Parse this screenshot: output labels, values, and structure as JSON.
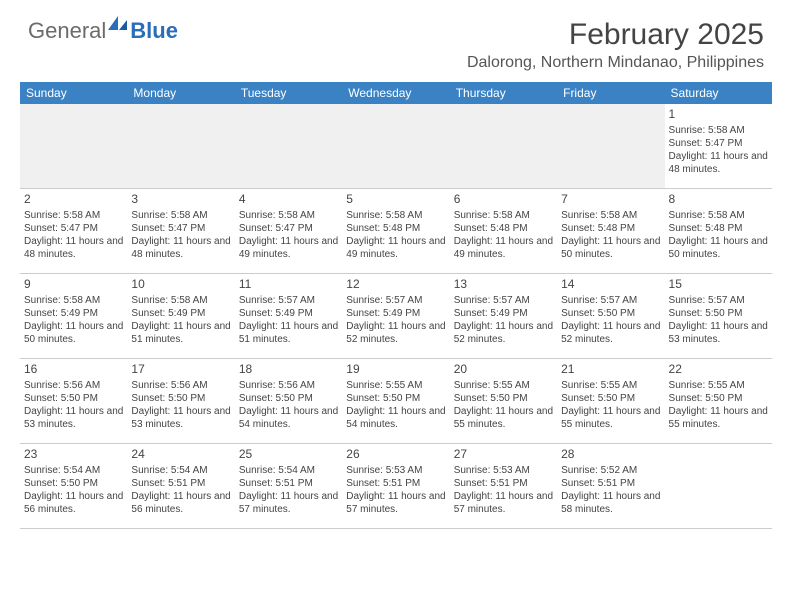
{
  "logo": {
    "part1": "General",
    "part2": "Blue"
  },
  "title": "February 2025",
  "location": "Dalorong, Northern Mindanao, Philippines",
  "colors": {
    "header_bg": "#3b82c4",
    "header_text": "#ffffff",
    "empty_bg": "#f0f0f0",
    "border": "#cccccc",
    "text": "#444444",
    "logo_blue": "#2a6db8"
  },
  "weekdays": [
    "Sunday",
    "Monday",
    "Tuesday",
    "Wednesday",
    "Thursday",
    "Friday",
    "Saturday"
  ],
  "weeks": [
    [
      null,
      null,
      null,
      null,
      null,
      null,
      {
        "n": "1",
        "sunrise": "5:58 AM",
        "sunset": "5:47 PM",
        "daylight": "11 hours and 48 minutes."
      }
    ],
    [
      {
        "n": "2",
        "sunrise": "5:58 AM",
        "sunset": "5:47 PM",
        "daylight": "11 hours and 48 minutes."
      },
      {
        "n": "3",
        "sunrise": "5:58 AM",
        "sunset": "5:47 PM",
        "daylight": "11 hours and 48 minutes."
      },
      {
        "n": "4",
        "sunrise": "5:58 AM",
        "sunset": "5:47 PM",
        "daylight": "11 hours and 49 minutes."
      },
      {
        "n": "5",
        "sunrise": "5:58 AM",
        "sunset": "5:48 PM",
        "daylight": "11 hours and 49 minutes."
      },
      {
        "n": "6",
        "sunrise": "5:58 AM",
        "sunset": "5:48 PM",
        "daylight": "11 hours and 49 minutes."
      },
      {
        "n": "7",
        "sunrise": "5:58 AM",
        "sunset": "5:48 PM",
        "daylight": "11 hours and 50 minutes."
      },
      {
        "n": "8",
        "sunrise": "5:58 AM",
        "sunset": "5:48 PM",
        "daylight": "11 hours and 50 minutes."
      }
    ],
    [
      {
        "n": "9",
        "sunrise": "5:58 AM",
        "sunset": "5:49 PM",
        "daylight": "11 hours and 50 minutes."
      },
      {
        "n": "10",
        "sunrise": "5:58 AM",
        "sunset": "5:49 PM",
        "daylight": "11 hours and 51 minutes."
      },
      {
        "n": "11",
        "sunrise": "5:57 AM",
        "sunset": "5:49 PM",
        "daylight": "11 hours and 51 minutes."
      },
      {
        "n": "12",
        "sunrise": "5:57 AM",
        "sunset": "5:49 PM",
        "daylight": "11 hours and 52 minutes."
      },
      {
        "n": "13",
        "sunrise": "5:57 AM",
        "sunset": "5:49 PM",
        "daylight": "11 hours and 52 minutes."
      },
      {
        "n": "14",
        "sunrise": "5:57 AM",
        "sunset": "5:50 PM",
        "daylight": "11 hours and 52 minutes."
      },
      {
        "n": "15",
        "sunrise": "5:57 AM",
        "sunset": "5:50 PM",
        "daylight": "11 hours and 53 minutes."
      }
    ],
    [
      {
        "n": "16",
        "sunrise": "5:56 AM",
        "sunset": "5:50 PM",
        "daylight": "11 hours and 53 minutes."
      },
      {
        "n": "17",
        "sunrise": "5:56 AM",
        "sunset": "5:50 PM",
        "daylight": "11 hours and 53 minutes."
      },
      {
        "n": "18",
        "sunrise": "5:56 AM",
        "sunset": "5:50 PM",
        "daylight": "11 hours and 54 minutes."
      },
      {
        "n": "19",
        "sunrise": "5:55 AM",
        "sunset": "5:50 PM",
        "daylight": "11 hours and 54 minutes."
      },
      {
        "n": "20",
        "sunrise": "5:55 AM",
        "sunset": "5:50 PM",
        "daylight": "11 hours and 55 minutes."
      },
      {
        "n": "21",
        "sunrise": "5:55 AM",
        "sunset": "5:50 PM",
        "daylight": "11 hours and 55 minutes."
      },
      {
        "n": "22",
        "sunrise": "5:55 AM",
        "sunset": "5:50 PM",
        "daylight": "11 hours and 55 minutes."
      }
    ],
    [
      {
        "n": "23",
        "sunrise": "5:54 AM",
        "sunset": "5:50 PM",
        "daylight": "11 hours and 56 minutes."
      },
      {
        "n": "24",
        "sunrise": "5:54 AM",
        "sunset": "5:51 PM",
        "daylight": "11 hours and 56 minutes."
      },
      {
        "n": "25",
        "sunrise": "5:54 AM",
        "sunset": "5:51 PM",
        "daylight": "11 hours and 57 minutes."
      },
      {
        "n": "26",
        "sunrise": "5:53 AM",
        "sunset": "5:51 PM",
        "daylight": "11 hours and 57 minutes."
      },
      {
        "n": "27",
        "sunrise": "5:53 AM",
        "sunset": "5:51 PM",
        "daylight": "11 hours and 57 minutes."
      },
      {
        "n": "28",
        "sunrise": "5:52 AM",
        "sunset": "5:51 PM",
        "daylight": "11 hours and 58 minutes."
      },
      null
    ]
  ],
  "labels": {
    "sunrise": "Sunrise:",
    "sunset": "Sunset:",
    "daylight": "Daylight:"
  }
}
